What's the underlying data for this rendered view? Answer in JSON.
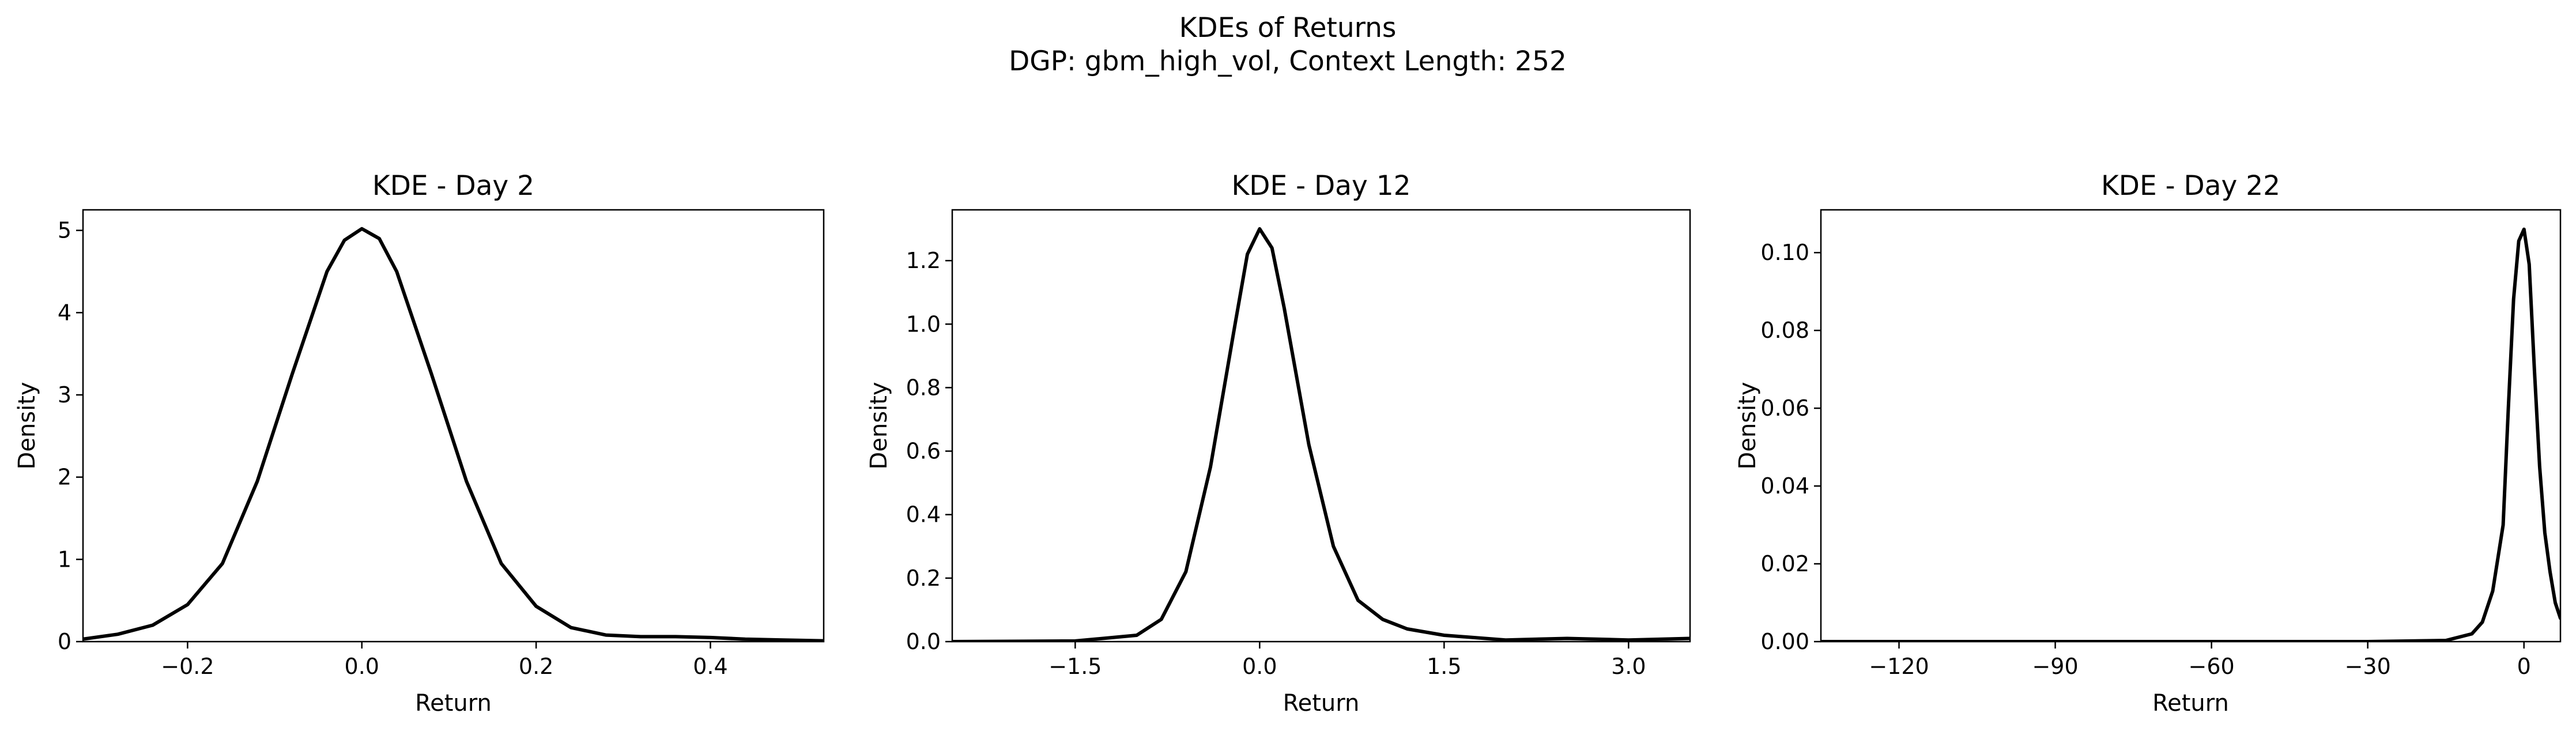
{
  "figure": {
    "title_line1": "KDEs of Returns",
    "title_line2": "DGP: gbm_high_vol, Context Length: 252"
  },
  "chart_data": [
    {
      "type": "line",
      "title": "KDE - Day 2",
      "xlabel": "Return",
      "ylabel": "Density",
      "xlim": [
        -0.32,
        0.53
      ],
      "ylim": [
        0,
        5.25
      ],
      "xticks": [
        -0.2,
        0.0,
        0.2,
        0.4
      ],
      "xtick_labels": [
        "−0.2",
        "0.0",
        "0.2",
        "0.4"
      ],
      "yticks": [
        0,
        1,
        2,
        3,
        4,
        5
      ],
      "ytick_labels": [
        "0",
        "1",
        "2",
        "3",
        "4",
        "5"
      ],
      "series": [
        {
          "color": "#000000",
          "x": [
            -0.32,
            -0.28,
            -0.24,
            -0.2,
            -0.16,
            -0.12,
            -0.08,
            -0.04,
            -0.02,
            0.0,
            0.02,
            0.04,
            0.08,
            0.12,
            0.16,
            0.2,
            0.24,
            0.28,
            0.32,
            0.36,
            0.4,
            0.44,
            0.48,
            0.53
          ],
          "y": [
            0.03,
            0.09,
            0.2,
            0.45,
            0.95,
            1.95,
            3.25,
            4.5,
            4.88,
            5.02,
            4.9,
            4.5,
            3.25,
            1.95,
            0.95,
            0.43,
            0.17,
            0.08,
            0.06,
            0.06,
            0.05,
            0.03,
            0.02,
            0.01
          ]
        }
      ]
    },
    {
      "type": "line",
      "title": "KDE - Day 12",
      "xlabel": "Return",
      "ylabel": "Density",
      "xlim": [
        -2.5,
        3.5
      ],
      "ylim": [
        0,
        1.36
      ],
      "xticks": [
        -1.5,
        0.0,
        1.5,
        3.0
      ],
      "xtick_labels": [
        "−1.5",
        "0.0",
        "1.5",
        "3.0"
      ],
      "yticks": [
        0.0,
        0.2,
        0.4,
        0.6,
        0.8,
        1.0,
        1.2
      ],
      "ytick_labels": [
        "0.0",
        "0.2",
        "0.4",
        "0.6",
        "0.8",
        "1.0",
        "1.2"
      ],
      "series": [
        {
          "color": "#000000",
          "x": [
            -2.5,
            -1.5,
            -1.0,
            -0.8,
            -0.6,
            -0.4,
            -0.2,
            -0.1,
            0.0,
            0.1,
            0.2,
            0.4,
            0.6,
            0.8,
            1.0,
            1.2,
            1.5,
            2.0,
            2.5,
            3.0,
            3.5
          ],
          "y": [
            0.0,
            0.002,
            0.02,
            0.07,
            0.22,
            0.55,
            1.0,
            1.22,
            1.3,
            1.24,
            1.05,
            0.62,
            0.3,
            0.13,
            0.07,
            0.04,
            0.02,
            0.005,
            0.01,
            0.005,
            0.01
          ]
        }
      ]
    },
    {
      "type": "line",
      "title": "KDE - Day 22",
      "xlabel": "Return",
      "ylabel": "Density",
      "xlim": [
        -135,
        7
      ],
      "ylim": [
        0,
        0.111
      ],
      "xticks": [
        -120,
        -90,
        -60,
        -30,
        0
      ],
      "xtick_labels": [
        "−120",
        "−90",
        "−60",
        "−30",
        "0"
      ],
      "yticks": [
        0.0,
        0.02,
        0.04,
        0.06,
        0.08,
        0.1
      ],
      "ytick_labels": [
        "0.00",
        "0.02",
        "0.04",
        "0.06",
        "0.08",
        "0.10"
      ],
      "series": [
        {
          "color": "#000000",
          "x": [
            -135,
            -60,
            -30,
            -15,
            -10,
            -8,
            -6,
            -4,
            -3,
            -2,
            -1,
            0,
            1,
            2,
            3,
            4,
            5,
            6,
            7
          ],
          "y": [
            0.0,
            0.0,
            0.0,
            0.0003,
            0.002,
            0.005,
            0.013,
            0.03,
            0.06,
            0.088,
            0.103,
            0.106,
            0.097,
            0.07,
            0.045,
            0.028,
            0.018,
            0.01,
            0.006
          ]
        }
      ]
    }
  ]
}
